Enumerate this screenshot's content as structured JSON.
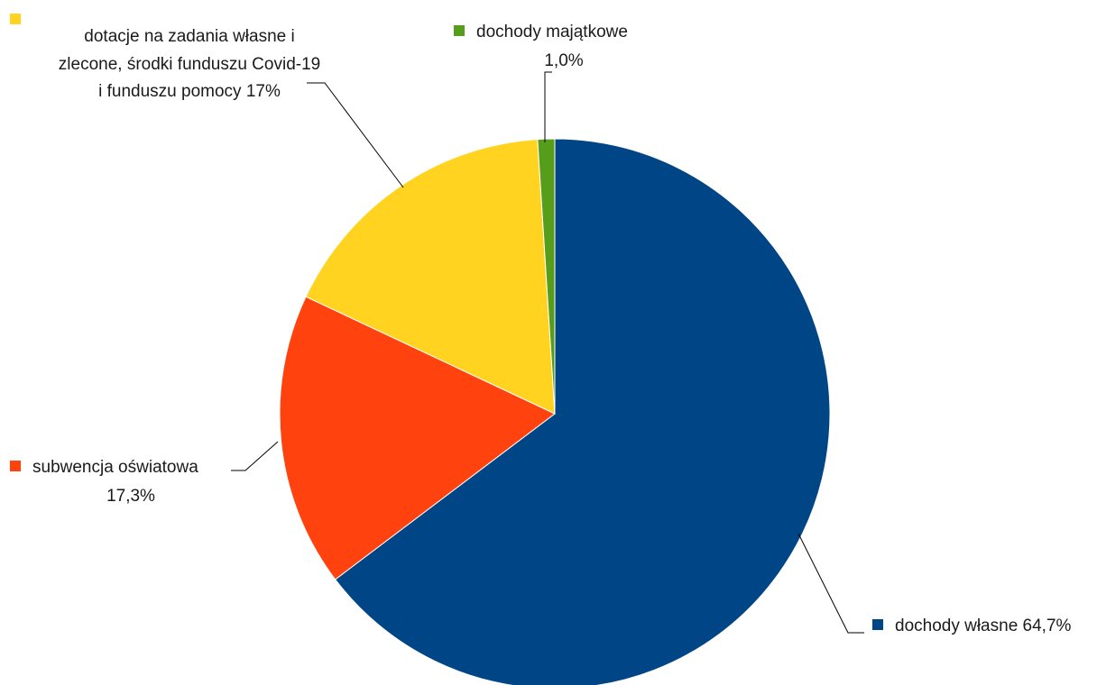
{
  "chart_data": {
    "type": "pie",
    "slices": [
      {
        "key": "dochody_wlasne",
        "label_lines": [
          "dochody własne 64,7%"
        ],
        "value": 64.7,
        "color": "#004586"
      },
      {
        "key": "subwencja",
        "label_lines": [
          "subwencja oświatowa",
          "17,3%"
        ],
        "value": 17.3,
        "color": "#ff420e"
      },
      {
        "key": "dotacje",
        "label_lines": [
          "dotacje na zadania własne i",
          "zlecone, środki funduszu Covid-19",
          "i funduszu pomocy 17%"
        ],
        "value": 17.0,
        "color": "#ffd320"
      },
      {
        "key": "dochody_majatkowe",
        "label_lines": [
          "dochody majątkowe",
          "1,0%"
        ],
        "value": 1.0,
        "color": "#579d1c"
      }
    ],
    "title": "",
    "legend": "none"
  }
}
